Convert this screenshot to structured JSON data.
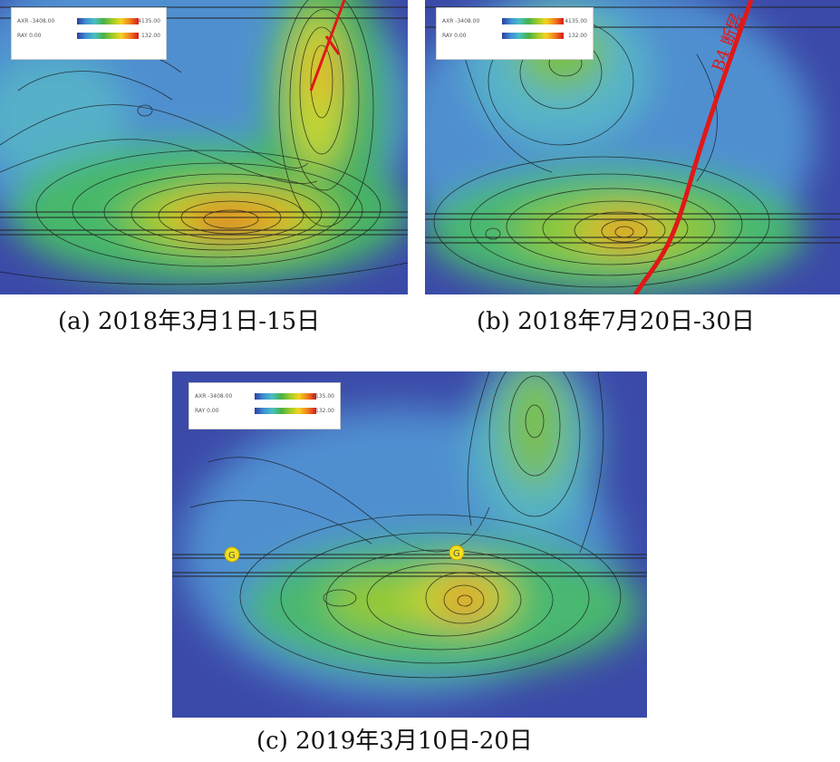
{
  "panels": [
    {
      "id": "a",
      "caption": "(a) 2018年3月1日-15日",
      "legend": {
        "row1_label": "AXR -3408.00",
        "row1_max": "4135.00",
        "row2_label": "RAY 0.00",
        "row2_max": "132.00"
      }
    },
    {
      "id": "b",
      "caption": "(b) 2018年7月20日-30日",
      "legend": {
        "row1_label": "AXR -3408.00",
        "row1_max": "4135.00",
        "row2_label": "RAY 0.00",
        "row2_max": "132.00"
      },
      "fault_label": "B4 断层"
    },
    {
      "id": "c",
      "caption": "(c) 2019年3月10日-20日",
      "legend": {
        "row1_label": "AXR -3408.00",
        "row1_max": "4135.00",
        "row2_label": "RAY 0.00",
        "row2_max": "132.00"
      },
      "markers": [
        "G",
        "G"
      ]
    }
  ],
  "colors": {
    "low": "#3b4aa8",
    "mid": "#48b048",
    "high": "#d81818"
  }
}
